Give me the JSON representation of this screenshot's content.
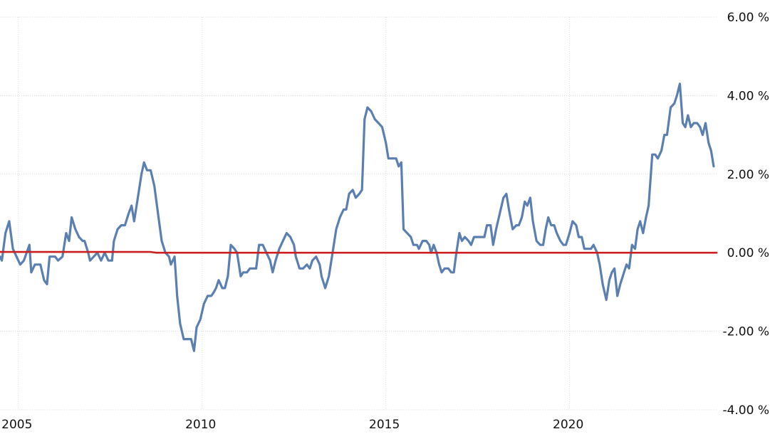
{
  "chart_data": {
    "type": "line",
    "title": "",
    "xlabel": "",
    "ylabel": "",
    "x_ticks": [
      {
        "label": "2005",
        "year": 2005
      },
      {
        "label": "2010",
        "year": 2010
      },
      {
        "label": "2015",
        "year": 2015
      },
      {
        "label": "2020",
        "year": 2020
      }
    ],
    "y_ticks": [
      {
        "label": "6.00 %",
        "value": 6
      },
      {
        "label": "4.00 %",
        "value": 4
      },
      {
        "label": "2.00 %",
        "value": 2
      },
      {
        "label": "0.00 %",
        "value": 0
      },
      {
        "label": "-2.00 %",
        "value": -2
      },
      {
        "label": "-4.00 %",
        "value": -4
      }
    ],
    "xlim": [
      2004.5,
      2024.0
    ],
    "ylim": [
      -4,
      6
    ],
    "grid": {
      "vertical": true,
      "horizontal": true
    },
    "series": [
      {
        "color": "#5b7fb0",
        "points": [
          [
            2004.5,
            -0.1
          ],
          [
            2004.55,
            -0.2
          ],
          [
            2004.65,
            0.5
          ],
          [
            2004.75,
            0.8
          ],
          [
            2004.85,
            0.1
          ],
          [
            2004.95,
            -0.1
          ],
          [
            2005.05,
            -0.3
          ],
          [
            2005.15,
            -0.2
          ],
          [
            2005.3,
            0.2
          ],
          [
            2005.35,
            -0.5
          ],
          [
            2005.45,
            -0.3
          ],
          [
            2005.6,
            -0.3
          ],
          [
            2005.7,
            -0.7
          ],
          [
            2005.78,
            -0.8
          ],
          [
            2005.85,
            -0.1
          ],
          [
            2006.0,
            -0.1
          ],
          [
            2006.08,
            -0.2
          ],
          [
            2006.2,
            -0.1
          ],
          [
            2006.3,
            0.5
          ],
          [
            2006.38,
            0.3
          ],
          [
            2006.45,
            0.9
          ],
          [
            2006.55,
            0.6
          ],
          [
            2006.65,
            0.4
          ],
          [
            2006.75,
            0.3
          ],
          [
            2006.8,
            0.3
          ],
          [
            2006.9,
            0.0
          ],
          [
            2006.95,
            -0.2
          ],
          [
            2007.05,
            -0.1
          ],
          [
            2007.15,
            0.0
          ],
          [
            2007.25,
            -0.2
          ],
          [
            2007.35,
            0.0
          ],
          [
            2007.4,
            -0.1
          ],
          [
            2007.45,
            -0.2
          ],
          [
            2007.55,
            -0.2
          ],
          [
            2007.6,
            0.3
          ],
          [
            2007.7,
            0.6
          ],
          [
            2007.8,
            0.7
          ],
          [
            2007.9,
            0.7
          ],
          [
            2008.0,
            1.0
          ],
          [
            2008.08,
            1.2
          ],
          [
            2008.15,
            0.8
          ],
          [
            2008.25,
            1.4
          ],
          [
            2008.35,
            2.0
          ],
          [
            2008.42,
            2.3
          ],
          [
            2008.5,
            2.1
          ],
          [
            2008.6,
            2.1
          ],
          [
            2008.7,
            1.7
          ],
          [
            2008.8,
            1.0
          ],
          [
            2008.9,
            0.3
          ],
          [
            2009.0,
            0.0
          ],
          [
            2009.1,
            -0.1
          ],
          [
            2009.15,
            -0.3
          ],
          [
            2009.25,
            -0.1
          ],
          [
            2009.32,
            -1.1
          ],
          [
            2009.4,
            -1.8
          ],
          [
            2009.5,
            -2.2
          ],
          [
            2009.6,
            -2.2
          ],
          [
            2009.7,
            -2.2
          ],
          [
            2009.78,
            -2.5
          ],
          [
            2009.85,
            -1.9
          ],
          [
            2009.95,
            -1.7
          ],
          [
            2010.05,
            -1.3
          ],
          [
            2010.15,
            -1.1
          ],
          [
            2010.25,
            -1.1
          ],
          [
            2010.32,
            -1.0
          ],
          [
            2010.38,
            -0.9
          ],
          [
            2010.45,
            -0.7
          ],
          [
            2010.55,
            -0.9
          ],
          [
            2010.62,
            -0.9
          ],
          [
            2010.7,
            -0.6
          ],
          [
            2010.78,
            0.2
          ],
          [
            2010.88,
            0.1
          ],
          [
            2010.95,
            0.0
          ],
          [
            2011.05,
            -0.6
          ],
          [
            2011.12,
            -0.5
          ],
          [
            2011.22,
            -0.5
          ],
          [
            2011.3,
            -0.4
          ],
          [
            2011.4,
            -0.4
          ],
          [
            2011.47,
            -0.4
          ],
          [
            2011.55,
            0.2
          ],
          [
            2011.65,
            0.2
          ],
          [
            2011.75,
            0.0
          ],
          [
            2011.85,
            -0.2
          ],
          [
            2011.92,
            -0.5
          ],
          [
            2012.0,
            -0.2
          ],
          [
            2012.1,
            0.1
          ],
          [
            2012.2,
            0.3
          ],
          [
            2012.3,
            0.5
          ],
          [
            2012.4,
            0.4
          ],
          [
            2012.5,
            0.2
          ],
          [
            2012.55,
            -0.1
          ],
          [
            2012.65,
            -0.4
          ],
          [
            2012.75,
            -0.4
          ],
          [
            2012.85,
            -0.3
          ],
          [
            2012.93,
            -0.4
          ],
          [
            2013.0,
            -0.2
          ],
          [
            2013.1,
            -0.1
          ],
          [
            2013.2,
            -0.3
          ],
          [
            2013.25,
            -0.6
          ],
          [
            2013.35,
            -0.9
          ],
          [
            2013.45,
            -0.6
          ],
          [
            2013.55,
            0.0
          ],
          [
            2013.65,
            0.6
          ],
          [
            2013.75,
            0.9
          ],
          [
            2013.85,
            1.1
          ],
          [
            2013.92,
            1.1
          ],
          [
            2014.0,
            1.5
          ],
          [
            2014.1,
            1.6
          ],
          [
            2014.18,
            1.4
          ],
          [
            2014.28,
            1.5
          ],
          [
            2014.35,
            1.6
          ],
          [
            2014.42,
            3.4
          ],
          [
            2014.5,
            3.7
          ],
          [
            2014.6,
            3.6
          ],
          [
            2014.7,
            3.4
          ],
          [
            2014.8,
            3.3
          ],
          [
            2014.9,
            3.2
          ],
          [
            2015.0,
            2.8
          ],
          [
            2015.07,
            2.4
          ],
          [
            2015.15,
            2.4
          ],
          [
            2015.28,
            2.4
          ],
          [
            2015.35,
            2.2
          ],
          [
            2015.42,
            2.3
          ],
          [
            2015.48,
            0.6
          ],
          [
            2015.58,
            0.5
          ],
          [
            2015.68,
            0.4
          ],
          [
            2015.75,
            0.2
          ],
          [
            2015.85,
            0.2
          ],
          [
            2015.9,
            0.1
          ],
          [
            2016.0,
            0.3
          ],
          [
            2016.1,
            0.3
          ],
          [
            2016.18,
            0.2
          ],
          [
            2016.23,
            0.0
          ],
          [
            2016.3,
            0.2
          ],
          [
            2016.38,
            0.0
          ],
          [
            2016.45,
            -0.3
          ],
          [
            2016.52,
            -0.5
          ],
          [
            2016.6,
            -0.4
          ],
          [
            2016.7,
            -0.4
          ],
          [
            2016.78,
            -0.5
          ],
          [
            2016.85,
            -0.5
          ],
          [
            2016.92,
            0.0
          ],
          [
            2017.0,
            0.5
          ],
          [
            2017.07,
            0.3
          ],
          [
            2017.15,
            0.4
          ],
          [
            2017.25,
            0.3
          ],
          [
            2017.32,
            0.2
          ],
          [
            2017.4,
            0.4
          ],
          [
            2017.5,
            0.4
          ],
          [
            2017.6,
            0.4
          ],
          [
            2017.68,
            0.4
          ],
          [
            2017.75,
            0.7
          ],
          [
            2017.85,
            0.7
          ],
          [
            2017.92,
            0.2
          ],
          [
            2018.0,
            0.6
          ],
          [
            2018.1,
            1.0
          ],
          [
            2018.2,
            1.4
          ],
          [
            2018.28,
            1.5
          ],
          [
            2018.35,
            1.1
          ],
          [
            2018.45,
            0.6
          ],
          [
            2018.55,
            0.7
          ],
          [
            2018.62,
            0.7
          ],
          [
            2018.7,
            0.9
          ],
          [
            2018.78,
            1.3
          ],
          [
            2018.85,
            1.2
          ],
          [
            2018.93,
            1.4
          ],
          [
            2019.0,
            0.8
          ],
          [
            2019.1,
            0.3
          ],
          [
            2019.2,
            0.2
          ],
          [
            2019.28,
            0.2
          ],
          [
            2019.35,
            0.6
          ],
          [
            2019.42,
            0.9
          ],
          [
            2019.5,
            0.7
          ],
          [
            2019.58,
            0.7
          ],
          [
            2019.65,
            0.5
          ],
          [
            2019.75,
            0.3
          ],
          [
            2019.83,
            0.2
          ],
          [
            2019.9,
            0.2
          ],
          [
            2020.0,
            0.5
          ],
          [
            2020.08,
            0.8
          ],
          [
            2020.18,
            0.7
          ],
          [
            2020.25,
            0.4
          ],
          [
            2020.33,
            0.4
          ],
          [
            2020.4,
            0.1
          ],
          [
            2020.5,
            0.1
          ],
          [
            2020.58,
            0.1
          ],
          [
            2020.65,
            0.2
          ],
          [
            2020.75,
            0.0
          ],
          [
            2020.82,
            -0.3
          ],
          [
            2020.9,
            -0.8
          ],
          [
            2021.0,
            -1.2
          ],
          [
            2021.08,
            -0.7
          ],
          [
            2021.15,
            -0.5
          ],
          [
            2021.22,
            -0.4
          ],
          [
            2021.3,
            -1.1
          ],
          [
            2021.38,
            -0.8
          ],
          [
            2021.48,
            -0.5
          ],
          [
            2021.55,
            -0.3
          ],
          [
            2021.62,
            -0.4
          ],
          [
            2021.7,
            0.2
          ],
          [
            2021.78,
            0.1
          ],
          [
            2021.85,
            0.6
          ],
          [
            2021.92,
            0.8
          ],
          [
            2022.0,
            0.5
          ],
          [
            2022.08,
            0.9
          ],
          [
            2022.15,
            1.2
          ],
          [
            2022.25,
            2.5
          ],
          [
            2022.33,
            2.5
          ],
          [
            2022.4,
            2.4
          ],
          [
            2022.5,
            2.6
          ],
          [
            2022.58,
            3.0
          ],
          [
            2022.65,
            3.0
          ],
          [
            2022.75,
            3.7
          ],
          [
            2022.85,
            3.8
          ],
          [
            2022.92,
            4.0
          ],
          [
            2023.0,
            4.3
          ],
          [
            2023.08,
            3.3
          ],
          [
            2023.15,
            3.2
          ],
          [
            2023.22,
            3.5
          ],
          [
            2023.3,
            3.2
          ],
          [
            2023.38,
            3.3
          ],
          [
            2023.47,
            3.3
          ],
          [
            2023.55,
            3.2
          ],
          [
            2023.62,
            3.0
          ],
          [
            2023.7,
            3.3
          ],
          [
            2023.78,
            2.8
          ],
          [
            2023.85,
            2.6
          ],
          [
            2023.92,
            2.2
          ]
        ]
      },
      {
        "color": "#cc1f1f",
        "points": [
          [
            2004.5,
            0.02
          ],
          [
            2008.6,
            0.02
          ],
          [
            2008.75,
            0.0
          ],
          [
            2024.0,
            0.0
          ]
        ]
      }
    ]
  }
}
